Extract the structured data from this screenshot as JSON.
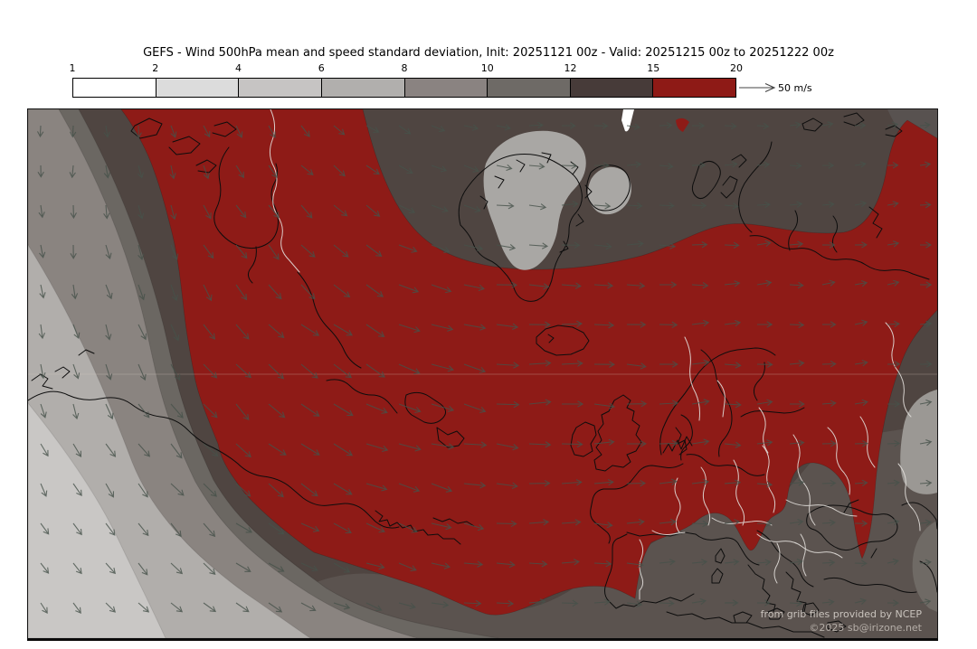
{
  "header": {
    "title": "GEFS - Wind 500hPa mean and speed standard deviation, Init: 20251121 00z - Valid: 20251215 00z to 20251222 00z"
  },
  "colorbar": {
    "tick_labels": [
      "1",
      "2",
      "4",
      "6",
      "8",
      "10",
      "12",
      "15",
      "20"
    ],
    "segments": [
      {
        "range": "1-2",
        "color": "#ffffff"
      },
      {
        "range": "2-4",
        "color": "#dcdcdc"
      },
      {
        "range": "4-6",
        "color": "#c6c4c3"
      },
      {
        "range": "6-8",
        "color": "#b1afad"
      },
      {
        "range": "8-10",
        "color": "#8a8381"
      },
      {
        "range": "10-12",
        "color": "#6e6a66"
      },
      {
        "range": "12-15",
        "color": "#473b39"
      },
      {
        "range": "15-20",
        "color": "#8e1a16"
      }
    ],
    "unit_arrow_label": "50 m/s"
  },
  "map": {
    "credits": {
      "line1": "from grib files provided by NCEP",
      "line2": "©2025 sb@irizone.net"
    },
    "colors": {
      "base_dark": "#4f4541",
      "south_region": "#5b534f",
      "topright_patch": "#585250",
      "band_10_12": "#6b6762",
      "band_8_10": "#8a8480",
      "band_6_8": "#b1aeab",
      "band_4_6": "#c9c7c5",
      "red_15_20": "#8e1b17",
      "ice_cap": "#a9a7a4",
      "light_patch": "#9b9894",
      "corner_patch": "#6f6a65",
      "coastline": "#0d0d0d",
      "border_line": "#e3dfdb",
      "latitude_line": "#d8c8c0",
      "wind_arrow": "#46524a",
      "white_notch": "#ffffff"
    },
    "arrows": {
      "step_x": 36,
      "step_y": 44
    }
  }
}
